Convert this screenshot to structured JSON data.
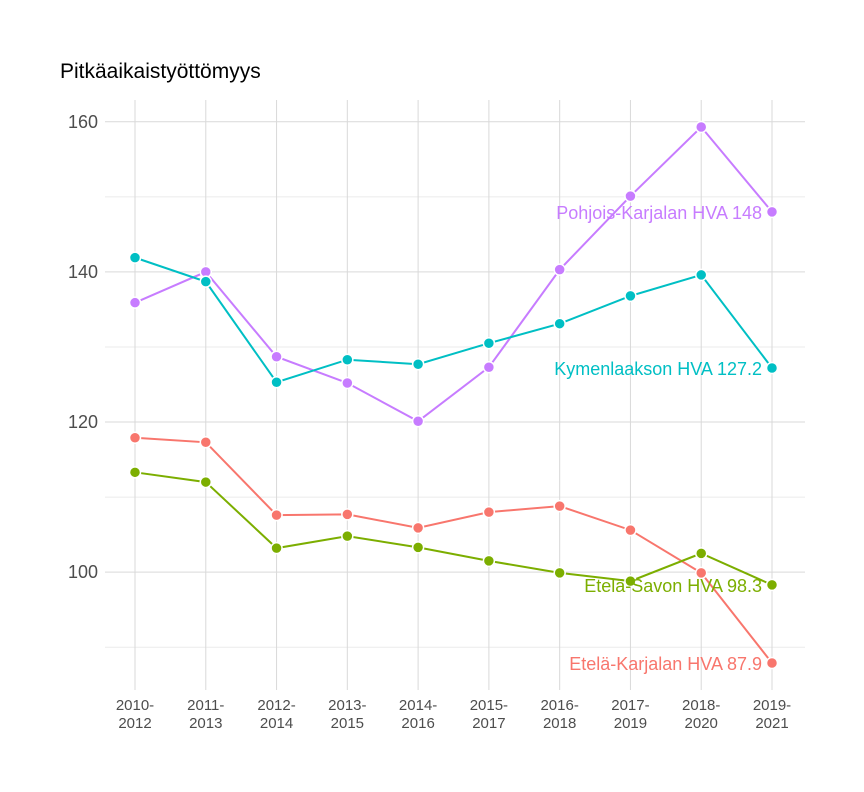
{
  "chart_data": {
    "type": "line",
    "title": "Pitkäaikaistyöttömyys",
    "xlabel": "",
    "ylabel": "",
    "ylim": [
      84.3,
      162.9
    ],
    "yticks": [
      100,
      120,
      140,
      160
    ],
    "yminor": [
      90,
      110,
      130,
      150
    ],
    "grid": true,
    "legend": "direct labels at line ends",
    "categories": [
      [
        "2010-",
        "2012"
      ],
      [
        "2011-",
        "2013"
      ],
      [
        "2012-",
        "2014"
      ],
      [
        "2013-",
        "2015"
      ],
      [
        "2014-",
        "2016"
      ],
      [
        "2015-",
        "2017"
      ],
      [
        "2016-",
        "2018"
      ],
      [
        "2017-",
        "2019"
      ],
      [
        "2018-",
        "2020"
      ],
      [
        "2019-",
        "2021"
      ]
    ],
    "series": [
      {
        "name": "Pohjois-Karjalan HVA",
        "label": "Pohjois-Karjalan HVA 148",
        "color": "#C77CFF",
        "values": [
          135.9,
          140.0,
          128.7,
          125.2,
          120.1,
          127.3,
          140.3,
          150.1,
          159.3,
          148.0
        ]
      },
      {
        "name": "Kymenlaakson HVA",
        "label": "Kymenlaakson HVA 127.2",
        "color": "#00BFC4",
        "values": [
          141.9,
          138.7,
          125.3,
          128.3,
          127.7,
          130.5,
          133.1,
          136.8,
          139.6,
          127.2
        ]
      },
      {
        "name": "Etelä-Karjalan HVA",
        "label": "Etelä-Karjalan HVA 87.9",
        "color": "#F8766D",
        "values": [
          117.9,
          117.3,
          107.6,
          107.7,
          105.9,
          108.0,
          108.8,
          105.6,
          99.9,
          87.9
        ]
      },
      {
        "name": "Etelä-Savon HVA",
        "label": "Etelä-Savon HVA 98.3",
        "color": "#7CAE00",
        "values": [
          113.3,
          112.0,
          103.2,
          104.8,
          103.3,
          101.5,
          99.9,
          98.8,
          102.5,
          98.3
        ]
      }
    ]
  }
}
